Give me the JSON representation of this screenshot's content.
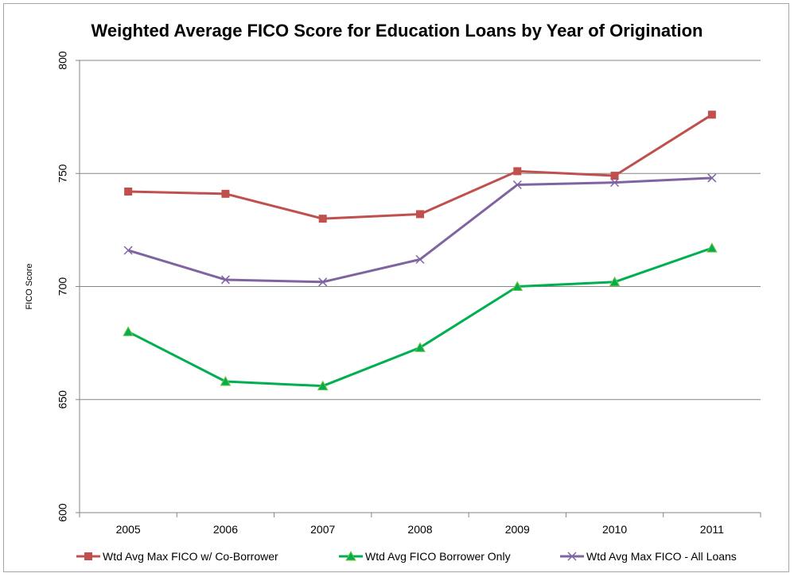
{
  "chart_data": {
    "type": "line",
    "title": "Weighted Average FICO Score for Education Loans by Year of Origination",
    "xlabel": "",
    "ylabel": "FICO Score",
    "categories": [
      "2005",
      "2006",
      "2007",
      "2008",
      "2009",
      "2010",
      "2011"
    ],
    "ylim": [
      600,
      800
    ],
    "yticks": [
      600,
      650,
      700,
      750,
      800
    ],
    "grid": true,
    "legend_position": "bottom",
    "series": [
      {
        "name": "Wtd Avg Max FICO w/ Co-Borrower",
        "color": "#c0504d",
        "marker": "square",
        "values": [
          742,
          741,
          730,
          732,
          751,
          749,
          776
        ]
      },
      {
        "name": "Wtd Avg FICO Borrower Only",
        "color": "#00b050",
        "marker": "triangle",
        "values": [
          680,
          658,
          656,
          673,
          700,
          702,
          717
        ]
      },
      {
        "name": "Wtd Avg Max FICO - All Loans",
        "color": "#8064a2",
        "marker": "x",
        "values": [
          716,
          703,
          702,
          712,
          745,
          746,
          748
        ]
      }
    ]
  }
}
